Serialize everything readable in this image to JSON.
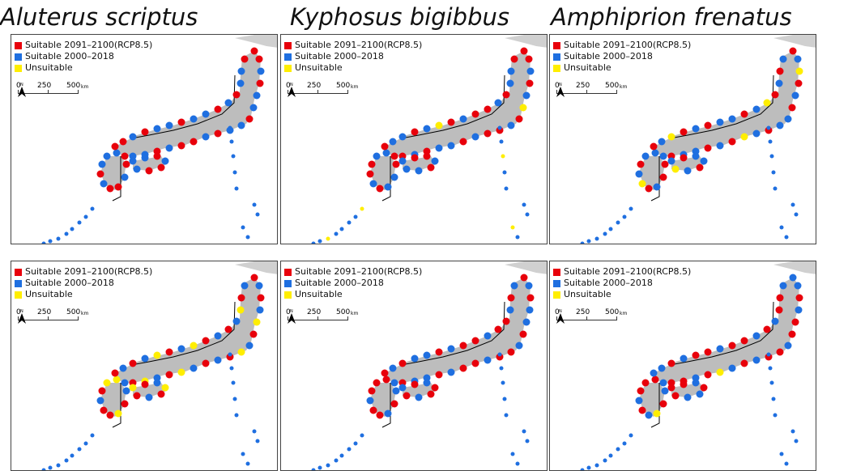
{
  "species_titles": [
    "Aluterus scriptus",
    "Kyphosus bigibbus",
    "Amphiprion frenatus"
  ],
  "legend": {
    "items": [
      {
        "label": "Suitable 2091–2100(RCP8.5)",
        "color": "#e8000b"
      },
      {
        "label": "Suitable 2000–2018",
        "color": "#1f6fe0"
      },
      {
        "label": "Unsuitable",
        "color": "#ffee00"
      }
    ]
  },
  "scale_bar": {
    "ticks": [
      "0",
      "250",
      "500"
    ],
    "unit": "km"
  },
  "colors": {
    "land": "#bdbdbd",
    "neighbor_land": "#d0d0d0",
    "border": "#000000"
  }
}
